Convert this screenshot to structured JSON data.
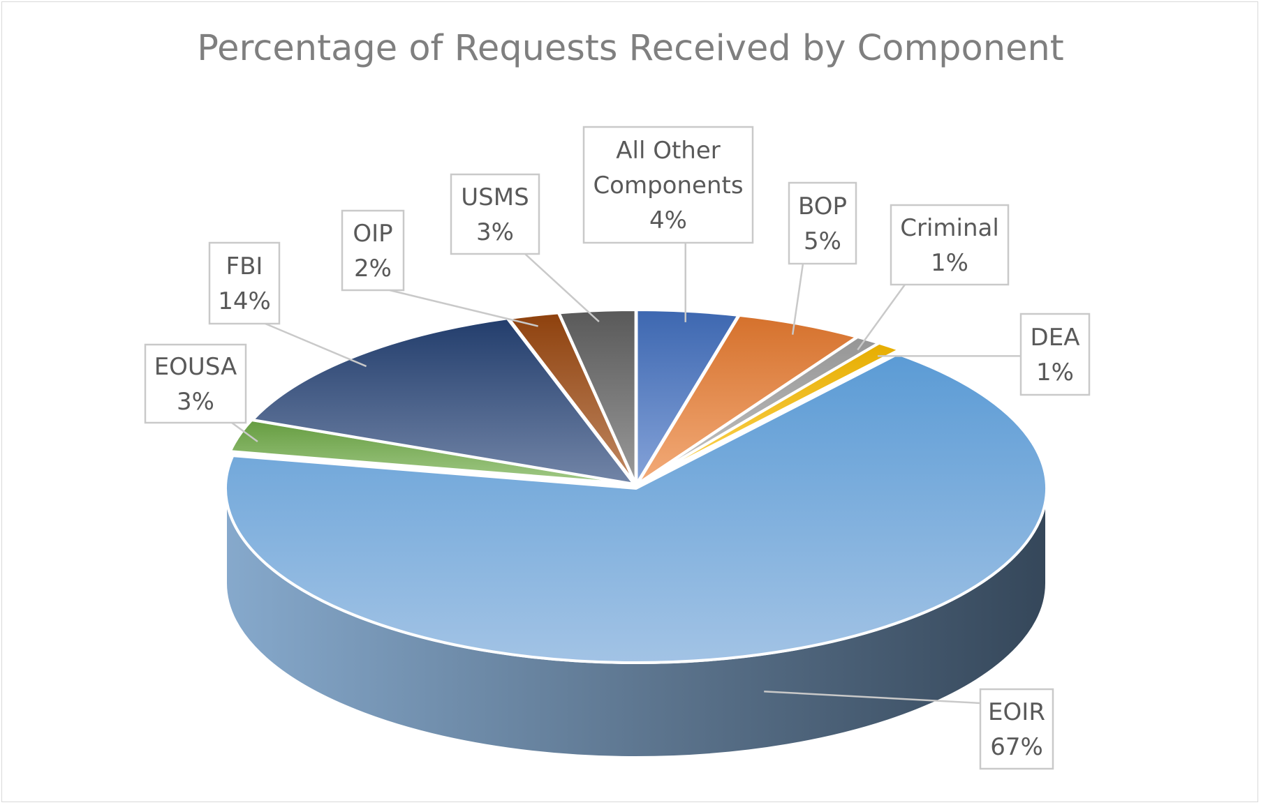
{
  "chart_data": {
    "type": "pie",
    "title": "Percentage of Requests Received by Component",
    "slices": [
      {
        "label": "All Other Components",
        "value": 4,
        "display": "4%",
        "color": "#4472c4"
      },
      {
        "label": "BOP",
        "value": 5,
        "display": "5%",
        "color": "#ed7d31"
      },
      {
        "label": "Criminal",
        "value": 1,
        "display": "1%",
        "color": "#a5a5a5"
      },
      {
        "label": "DEA",
        "value": 1,
        "display": "1%",
        "color": "#ffc000"
      },
      {
        "label": "EOIR",
        "value": 67,
        "display": "67%",
        "color": "#5b9bd5"
      },
      {
        "label": "EOUSA",
        "value": 3,
        "display": "3%",
        "color": "#70ad47"
      },
      {
        "label": "FBI",
        "value": 14,
        "display": "14%",
        "color": "#264478"
      },
      {
        "label": "OIP",
        "value": 2,
        "display": "2%",
        "color": "#9e480e"
      },
      {
        "label": "USMS",
        "value": 3,
        "display": "3%",
        "color": "#636363"
      }
    ],
    "legend": "none",
    "style": "3d-pie-with-callouts"
  }
}
